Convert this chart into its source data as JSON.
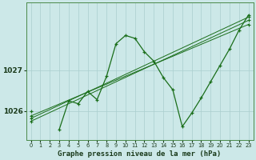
{
  "xlabel": "Graphe pression niveau de la mer (hPa)",
  "hours": [
    0,
    1,
    2,
    3,
    4,
    5,
    6,
    7,
    8,
    9,
    10,
    11,
    12,
    13,
    14,
    15,
    16,
    17,
    18,
    19,
    20,
    21,
    22,
    23
  ],
  "main_line": [
    1026.0,
    null,
    null,
    1025.55,
    1026.25,
    1026.18,
    1026.48,
    1026.28,
    1026.85,
    1027.65,
    1027.85,
    1027.78,
    1027.45,
    1027.22,
    1026.82,
    1026.52,
    1025.62,
    1025.95,
    1026.32,
    1026.72,
    1027.12,
    1027.52,
    1027.98,
    1028.35
  ],
  "straight_lines": [
    {
      "x": [
        0,
        23
      ],
      "y": [
        1025.82,
        1028.3
      ]
    },
    {
      "x": [
        0,
        23
      ],
      "y": [
        1025.75,
        1028.22
      ]
    },
    {
      "x": [
        0,
        23
      ],
      "y": [
        1025.88,
        1028.12
      ]
    }
  ],
  "line_color": "#1a6e1a",
  "background_color": "#cce8e8",
  "grid_color": "#aacece",
  "ylim_min": 1025.3,
  "ylim_max": 1028.65,
  "yticks": [
    1026,
    1027
  ],
  "xlim_min": -0.5,
  "xlim_max": 23.5,
  "fig_width": 3.2,
  "fig_height": 2.0,
  "dpi": 100
}
